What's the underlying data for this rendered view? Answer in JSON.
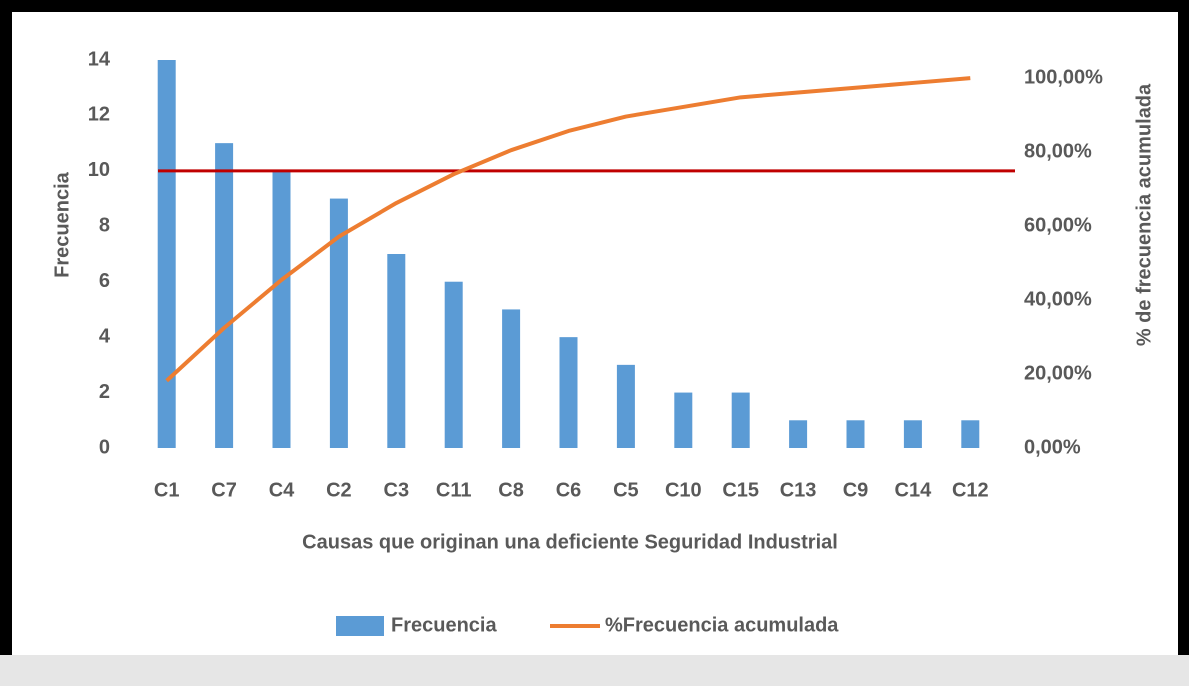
{
  "chart_data": {
    "type": "pareto",
    "x_label": "Causas que originan una deficiente Seguridad Industrial",
    "y_label": "Frecuencia",
    "y2_label": "% de frecuencia acumulada",
    "categories": [
      "C1",
      "C7",
      "C4",
      "C2",
      "C3",
      "C11",
      "C8",
      "C6",
      "C5",
      "C10",
      "C15",
      "C13",
      "C9",
      "C14",
      "C12"
    ],
    "series": [
      {
        "name": "Frecuencia",
        "type": "bar",
        "color": "#5b9bd5",
        "values": [
          14,
          11,
          10,
          9,
          7,
          6,
          5,
          4,
          3,
          2,
          2,
          1,
          1,
          1,
          1
        ]
      },
      {
        "name": "%Frecuencia acumulada",
        "type": "line",
        "axis": "y2",
        "color": "#ed7d31",
        "values": [
          18.18,
          32.47,
          45.45,
          57.14,
          66.23,
          74.03,
          80.52,
          85.71,
          89.61,
          92.21,
          94.81,
          96.1,
          97.4,
          98.7,
          100
        ]
      }
    ],
    "reference_line": {
      "value": 10,
      "axis": "y",
      "color": "#c00000"
    },
    "ylim": [
      0,
      14
    ],
    "yticks": [
      0,
      2,
      4,
      6,
      8,
      10,
      12,
      14
    ],
    "y2lim": [
      0,
      104.9
    ],
    "y2ticks": [
      {
        "value": 0,
        "label": "0,00%"
      },
      {
        "value": 20,
        "label": "20,00%"
      },
      {
        "value": 40,
        "label": "40,00%"
      },
      {
        "value": 60,
        "label": "60,00%"
      },
      {
        "value": 80,
        "label": "80,00%"
      },
      {
        "value": 100,
        "label": "100,00%"
      }
    ],
    "legend": "bottom"
  }
}
